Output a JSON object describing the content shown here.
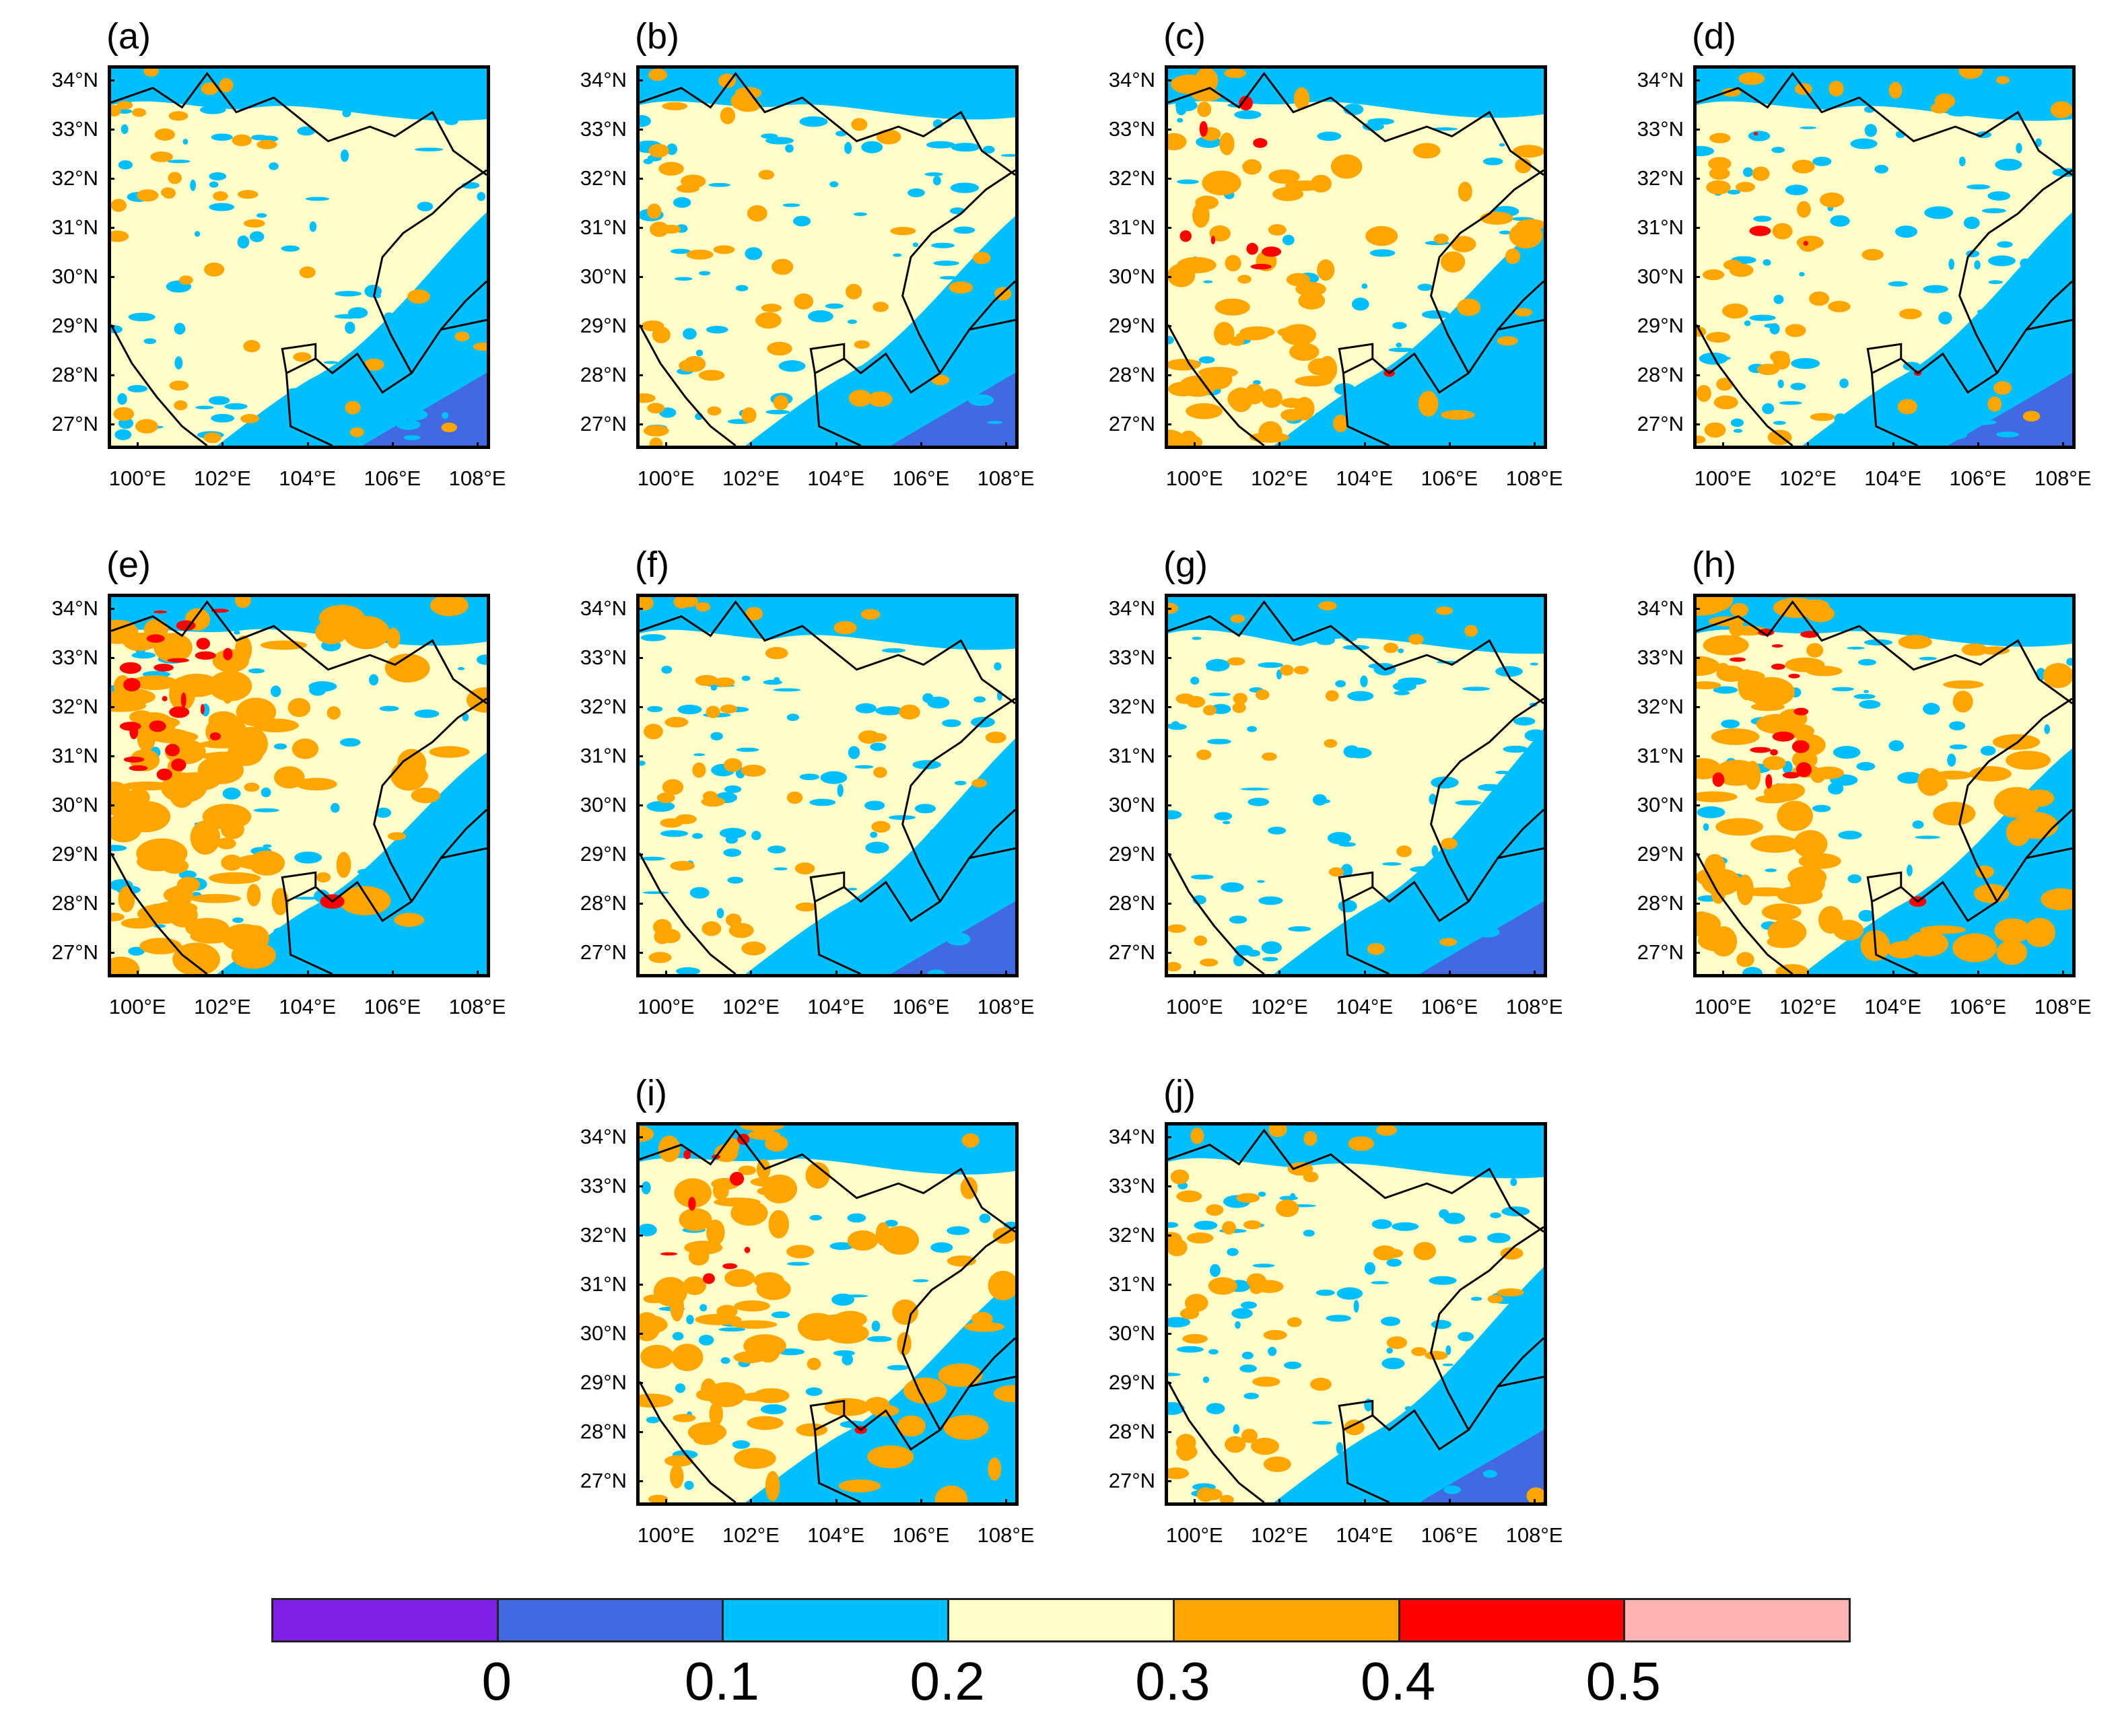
{
  "figure": {
    "panels": [
      {
        "id": "a",
        "label": "(a)"
      },
      {
        "id": "b",
        "label": "(b)"
      },
      {
        "id": "c",
        "label": "(c)"
      },
      {
        "id": "d",
        "label": "(d)"
      },
      {
        "id": "e",
        "label": "(e)"
      },
      {
        "id": "f",
        "label": "(f)"
      },
      {
        "id": "g",
        "label": "(g)"
      },
      {
        "id": "h",
        "label": "(h)"
      },
      {
        "id": "i",
        "label": "(i)"
      },
      {
        "id": "j",
        "label": "(j)"
      }
    ],
    "lat_ticks": [
      "34°N",
      "33°N",
      "32°N",
      "31°N",
      "30°N",
      "29°N",
      "28°N",
      "27°N"
    ],
    "lon_ticks": [
      "100°E",
      "102°E",
      "104°E",
      "106°E",
      "108°E"
    ],
    "lat_values": [
      34,
      33,
      32,
      31,
      30,
      29,
      28,
      27
    ],
    "lon_values": [
      100,
      102,
      104,
      106,
      108
    ],
    "lat_range": [
      26.5,
      34.3
    ],
    "lon_range": [
      99.3,
      108.3
    ]
  },
  "colorbar": {
    "colors": [
      "#8020e6",
      "#4169e1",
      "#00bfff",
      "#fffdc8",
      "#ffa500",
      "#ff0000",
      "#ffb4b4"
    ],
    "labels": [
      "0",
      "0.1",
      "0.2",
      "0.3",
      "0.4",
      "0.5"
    ]
  },
  "colors": {
    "ocean_low": "#4169e1",
    "blue": "#00bfff",
    "yellow": "#fffdc8",
    "orange": "#ffa500",
    "red": "#ff0000",
    "pink": "#ffb4b4",
    "boundary": "#000000"
  }
}
